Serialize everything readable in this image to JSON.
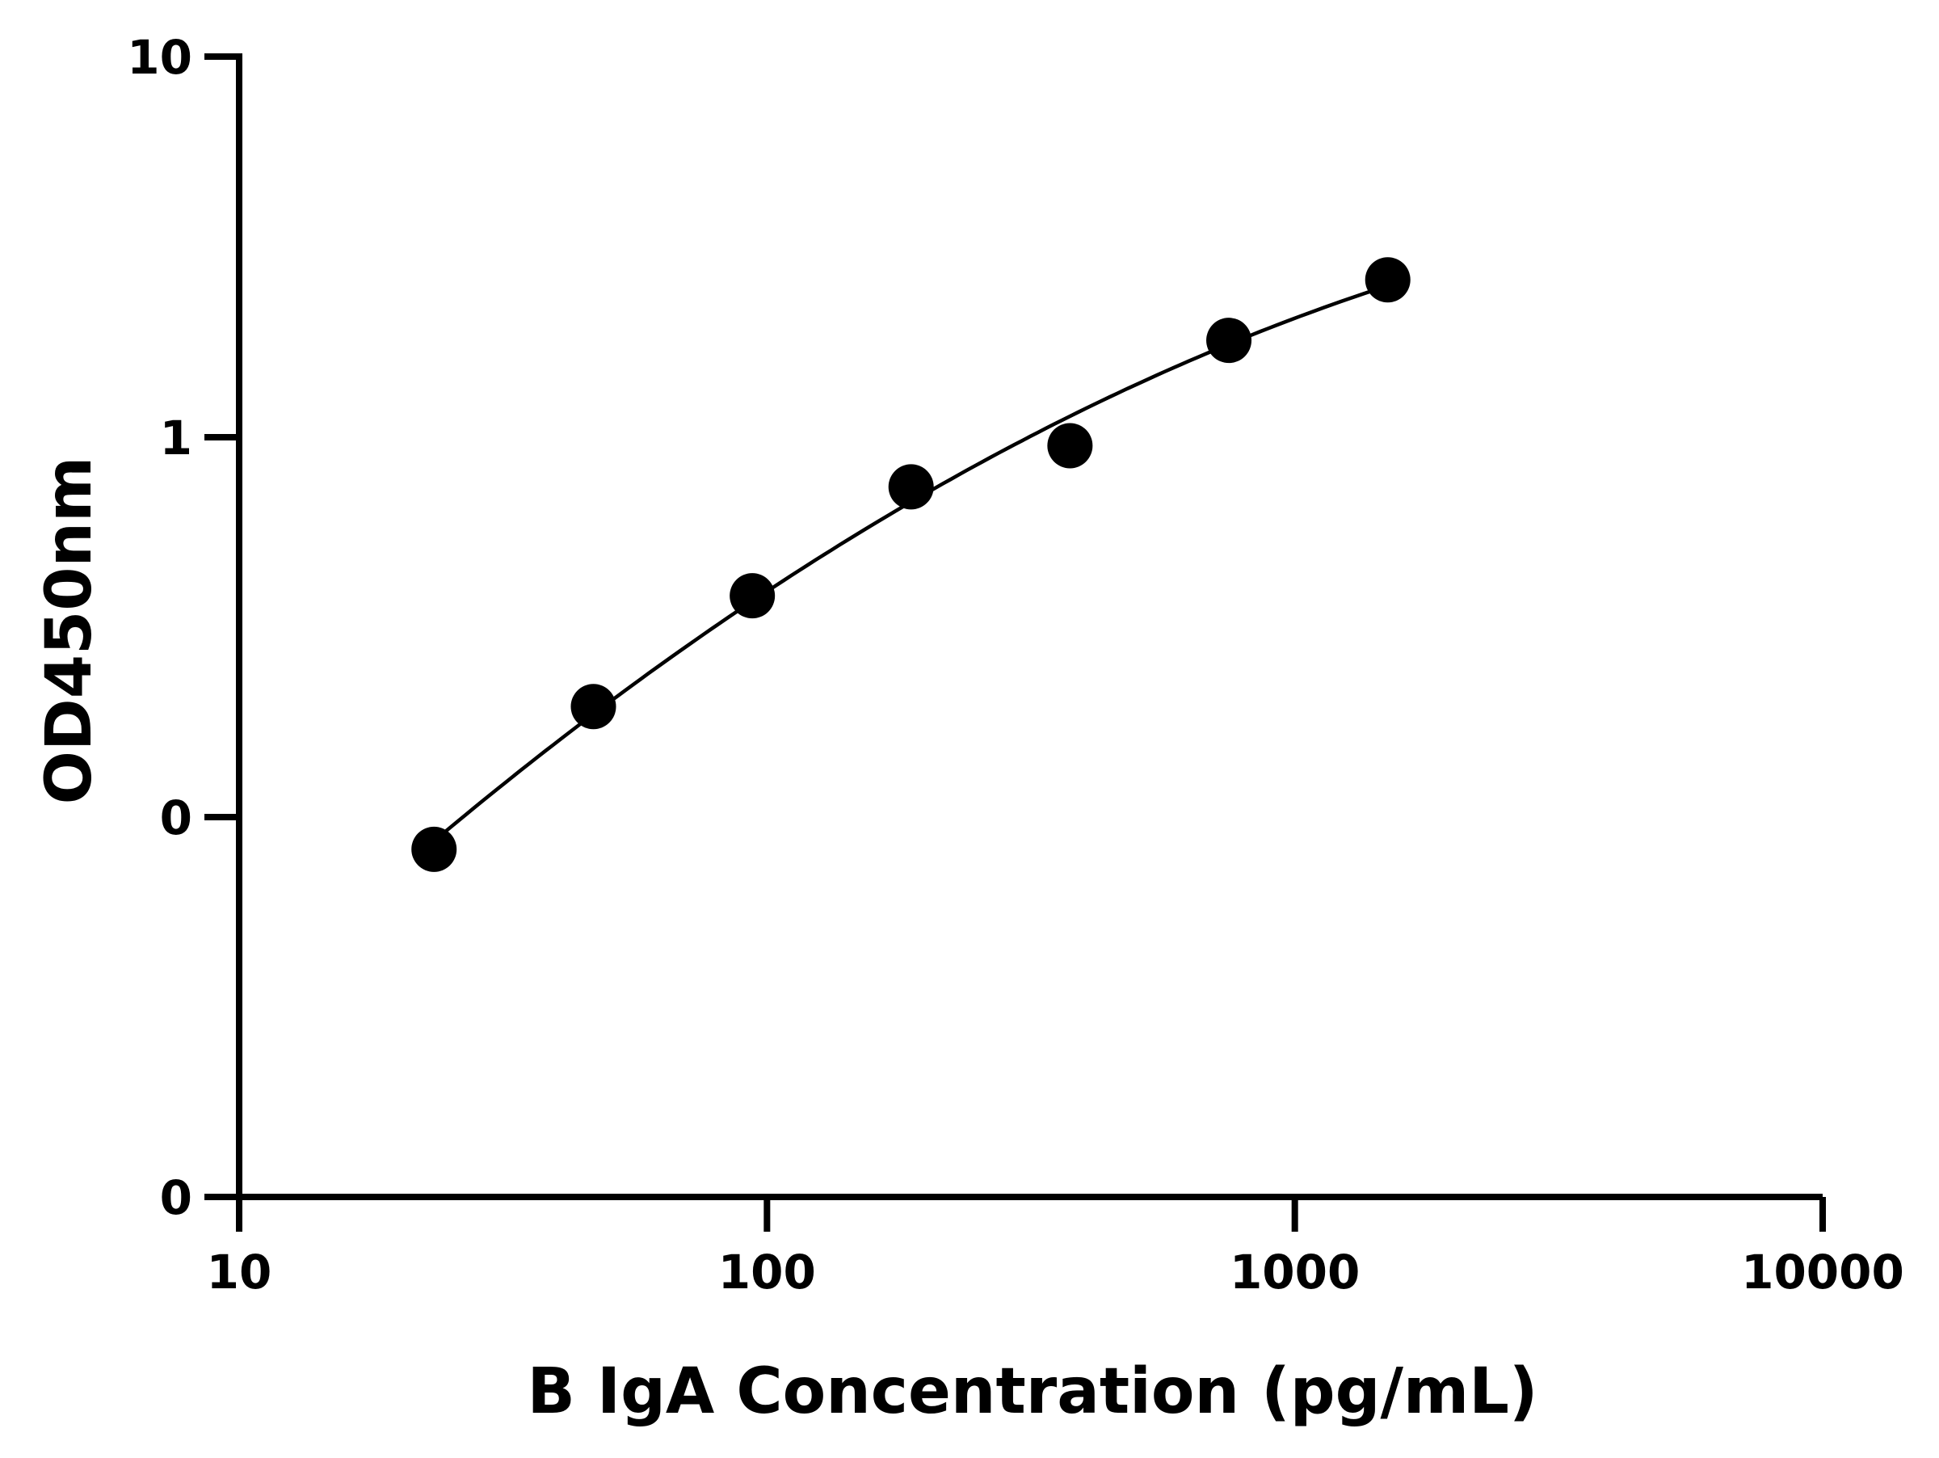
{
  "chart_data": {
    "type": "scatter",
    "xlabel": "B IgA Concentration (pg/mL)",
    "ylabel": "OD450nm",
    "x_scale": "log",
    "xlim": [
      10,
      10000
    ],
    "x_ticks": [
      "10",
      "100",
      "1000",
      "10000"
    ],
    "y_tick_labels": [
      "0",
      "0",
      "1",
      "10"
    ],
    "grid": false,
    "series": [
      {
        "points": [
          {
            "x": 23.4,
            "y": 0.082
          },
          {
            "x": 46.9,
            "y": 0.195
          },
          {
            "x": 93.8,
            "y": 0.382
          },
          {
            "x": 187.5,
            "y": 0.74
          },
          {
            "x": 375,
            "y": 0.95
          },
          {
            "x": 750,
            "y": 1.8
          },
          {
            "x": 1500,
            "y": 2.6
          }
        ]
      }
    ],
    "fit_curve": {
      "type": "4PL",
      "x_range": [
        23.4,
        1500
      ]
    },
    "colors": {
      "points": "#000000",
      "curve": "#000000",
      "axes": "#000000"
    }
  }
}
